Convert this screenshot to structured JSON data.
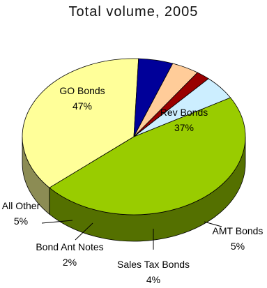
{
  "chart_data": {
    "type": "pie",
    "title": "Total volume, 2005",
    "three_d": true,
    "slices": [
      {
        "name": "GO Bonds",
        "label": "GO Bonds",
        "value_label": "47%",
        "value": 47,
        "color": "#99cc00"
      },
      {
        "name": "Rev Bonds",
        "label": "Rev Bonds",
        "value_label": "37%",
        "value": 37,
        "color": "#ffff99"
      },
      {
        "name": "AMT Bonds",
        "label": "AMT Bonds",
        "value_label": "5%",
        "value": 5,
        "color": "#000099"
      },
      {
        "name": "Sales Tax Bonds",
        "label": "Sales Tax Bonds",
        "value_label": "4%",
        "value": 4,
        "color": "#ffcc99"
      },
      {
        "name": "Bond Ant Notes",
        "label": "Bond Ant Notes",
        "value_label": "2%",
        "value": 2,
        "color": "#990000"
      },
      {
        "name": "All Other",
        "label": "All Other",
        "value_label": "5%",
        "value": 5,
        "color": "#cceeff"
      }
    ]
  }
}
